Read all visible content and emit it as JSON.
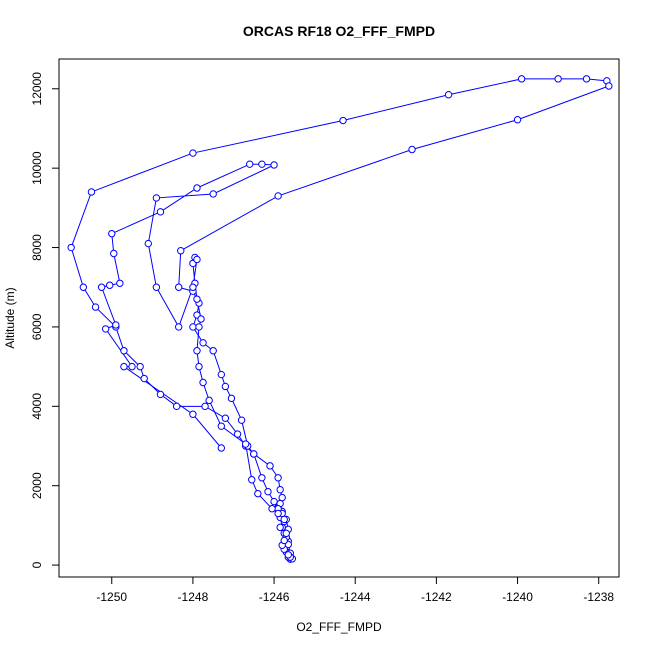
{
  "chart_data": {
    "type": "line",
    "title": "ORCAS RF18 O2_FFF_FMPD",
    "xlabel": "O2_FFF_FMPD",
    "ylabel": "Altitude (m)",
    "xlim": [
      -1251.3,
      -1237.5
    ],
    "ylim": [
      -300,
      12750
    ],
    "xticks": [
      -1250,
      -1248,
      -1246,
      -1244,
      -1242,
      -1240,
      -1238
    ],
    "yticks": [
      0,
      2000,
      4000,
      6000,
      8000,
      10000,
      12000
    ],
    "xtick_labels": [
      "-1250",
      "-1248",
      "-1246",
      "-1244",
      "-1242",
      "-1240",
      "-1238"
    ],
    "ytick_labels": [
      "0",
      "2000",
      "4000",
      "6000",
      "8000",
      "10000",
      "12000"
    ],
    "grid": false,
    "marker": "open-circle",
    "colors": {
      "series": "#0000ff",
      "axes": "#000000"
    },
    "series": [
      {
        "points": [
          [
            -1245.6,
            150
          ],
          [
            -1245.65,
            200
          ],
          [
            -1245.7,
            330
          ],
          [
            -1245.75,
            450
          ],
          [
            -1245.7,
            520
          ],
          [
            -1245.65,
            600
          ],
          [
            -1245.7,
            700
          ],
          [
            -1245.75,
            800
          ],
          [
            -1245.8,
            950
          ],
          [
            -1245.75,
            1100
          ],
          [
            -1245.85,
            1200
          ],
          [
            -1245.8,
            1350
          ],
          [
            -1245.9,
            1450
          ],
          [
            -1245.85,
            1550
          ],
          [
            -1245.8,
            1700
          ],
          [
            -1245.85,
            1900
          ],
          [
            -1245.9,
            2200
          ],
          [
            -1246.1,
            2500
          ],
          [
            -1246.5,
            2800
          ],
          [
            -1246.7,
            3000
          ],
          [
            -1246.9,
            3300
          ],
          [
            -1247.2,
            3700
          ],
          [
            -1247.7,
            4000
          ],
          [
            -1248.4,
            4000
          ],
          [
            -1248.8,
            4300
          ],
          [
            -1249.2,
            4700
          ],
          [
            -1249.3,
            5000
          ],
          [
            -1249.7,
            5400
          ],
          [
            -1249.9,
            6000
          ],
          [
            -1250.4,
            6500
          ],
          [
            -1250.7,
            7000
          ],
          [
            -1251.0,
            8000
          ],
          [
            -1250.5,
            9400
          ],
          [
            -1248.0,
            10380
          ],
          [
            -1244.3,
            11200
          ],
          [
            -1241.7,
            11850
          ],
          [
            -1239.9,
            12250
          ],
          [
            -1239.0,
            12250
          ],
          [
            -1238.3,
            12250
          ],
          [
            -1237.8,
            12200
          ]
        ]
      },
      {
        "points": [
          [
            -1237.75,
            12070
          ],
          [
            -1240.0,
            11220
          ],
          [
            -1242.6,
            10470
          ],
          [
            -1245.9,
            9300
          ],
          [
            -1248.3,
            7920
          ],
          [
            -1248.35,
            7000
          ],
          [
            -1248.0,
            6900
          ],
          [
            -1247.85,
            6600
          ],
          [
            -1247.9,
            6300
          ],
          [
            -1248.0,
            6000
          ],
          [
            -1247.75,
            5600
          ],
          [
            -1247.5,
            5400
          ],
          [
            -1247.3,
            4800
          ],
          [
            -1247.2,
            4500
          ],
          [
            -1247.05,
            4200
          ],
          [
            -1246.8,
            3650
          ],
          [
            -1246.65,
            3000
          ],
          [
            -1246.5,
            2800
          ],
          [
            -1246.3,
            2200
          ],
          [
            -1246.15,
            1850
          ],
          [
            -1246.0,
            1600
          ],
          [
            -1245.9,
            1420
          ],
          [
            -1245.8,
            1300
          ],
          [
            -1245.7,
            1150
          ],
          [
            -1245.65,
            900
          ],
          [
            -1245.7,
            700
          ],
          [
            -1245.65,
            520
          ],
          [
            -1245.6,
            300
          ],
          [
            -1245.55,
            160
          ]
        ]
      },
      {
        "points": [
          [
            -1245.6,
            200
          ],
          [
            -1245.65,
            260
          ],
          [
            -1245.75,
            400
          ],
          [
            -1245.8,
            500
          ],
          [
            -1245.75,
            620
          ],
          [
            -1245.7,
            800
          ],
          [
            -1245.85,
            950
          ],
          [
            -1245.75,
            1150
          ],
          [
            -1245.9,
            1300
          ],
          [
            -1246.05,
            1420
          ],
          [
            -1246.4,
            1800
          ],
          [
            -1246.55,
            2150
          ],
          [
            -1246.7,
            3050
          ],
          [
            -1247.3,
            3500
          ],
          [
            -1247.6,
            4150
          ],
          [
            -1247.75,
            4600
          ],
          [
            -1247.85,
            5000
          ],
          [
            -1247.9,
            5400
          ],
          [
            -1247.85,
            6000
          ],
          [
            -1247.8,
            6200
          ],
          [
            -1247.9,
            6700
          ],
          [
            -1247.95,
            7100
          ],
          [
            -1248.0,
            7600
          ],
          [
            -1247.95,
            7750
          ],
          [
            -1247.9,
            7700
          ],
          [
            -1248.0,
            7000
          ],
          [
            -1248.35,
            6000
          ],
          [
            -1248.9,
            7000
          ],
          [
            -1249.1,
            8100
          ],
          [
            -1248.9,
            9250
          ],
          [
            -1247.5,
            9350
          ],
          [
            -1246.0,
            10080
          ],
          [
            -1246.3,
            10100
          ],
          [
            -1246.6,
            10100
          ],
          [
            -1247.9,
            9500
          ],
          [
            -1248.8,
            8900
          ],
          [
            -1250.0,
            8350
          ],
          [
            -1249.95,
            7850
          ],
          [
            -1249.8,
            7100
          ],
          [
            -1250.05,
            7050
          ],
          [
            -1250.25,
            7000
          ],
          [
            -1249.9,
            6050
          ],
          [
            -1250.15,
            5950
          ],
          [
            -1249.5,
            5000
          ],
          [
            -1249.7,
            5000
          ],
          [
            -1248.0,
            3800
          ],
          [
            -1247.3,
            2950
          ]
        ]
      }
    ]
  }
}
